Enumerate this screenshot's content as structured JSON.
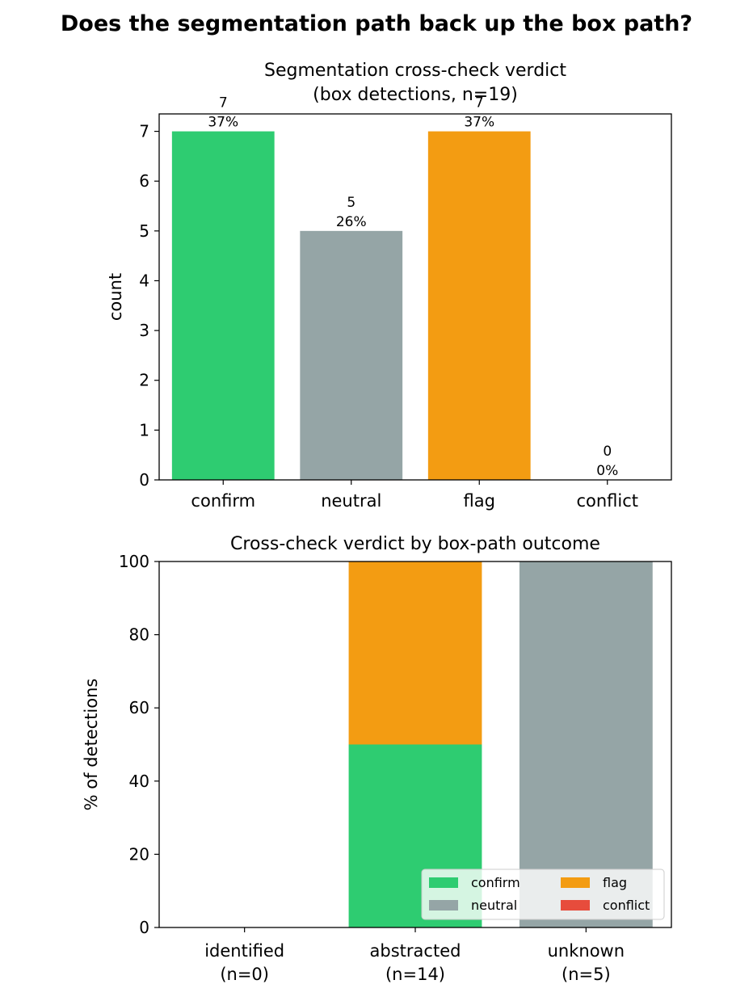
{
  "figure": {
    "suptitle": "Does the segmentation path back up the box path?"
  },
  "chart_data": [
    {
      "type": "bar",
      "title": "Segmentation cross-check verdict\n(box detections, n=19)",
      "categories": [
        "confirm",
        "neutral",
        "flag",
        "conflict"
      ],
      "values": [
        7,
        5,
        7,
        0
      ],
      "value_labels": [
        "7\n37%",
        "5\n26%",
        "7\n37%",
        "0\n0%"
      ],
      "colors": [
        "#2ecc71",
        "#95a5a6",
        "#f39c12",
        "#e74c3c"
      ],
      "xlabel": "",
      "ylabel": "count",
      "ylim": [
        0,
        7.35
      ],
      "yticks": [
        0,
        1,
        2,
        3,
        4,
        5,
        6,
        7
      ],
      "grid": false
    },
    {
      "type": "bar",
      "stacked": true,
      "title": "Cross-check verdict by box-path outcome",
      "categories": [
        "identified\n(n=0)",
        "abstracted\n(n=14)",
        "unknown\n(n=5)"
      ],
      "series": [
        {
          "name": "confirm",
          "color": "#2ecc71",
          "values": [
            0,
            50,
            0
          ]
        },
        {
          "name": "neutral",
          "color": "#95a5a6",
          "values": [
            0,
            0,
            100
          ]
        },
        {
          "name": "flag",
          "color": "#f39c12",
          "values": [
            0,
            50,
            0
          ]
        },
        {
          "name": "conflict",
          "color": "#e74c3c",
          "values": [
            0,
            0,
            0
          ]
        }
      ],
      "legend_order": [
        "confirm",
        "flag",
        "neutral",
        "conflict"
      ],
      "xlabel": "",
      "ylabel": "% of detections",
      "ylim": [
        0,
        100
      ],
      "yticks": [
        0,
        20,
        40,
        60,
        80,
        100
      ],
      "legend_position": "lower-right",
      "grid": false
    }
  ]
}
